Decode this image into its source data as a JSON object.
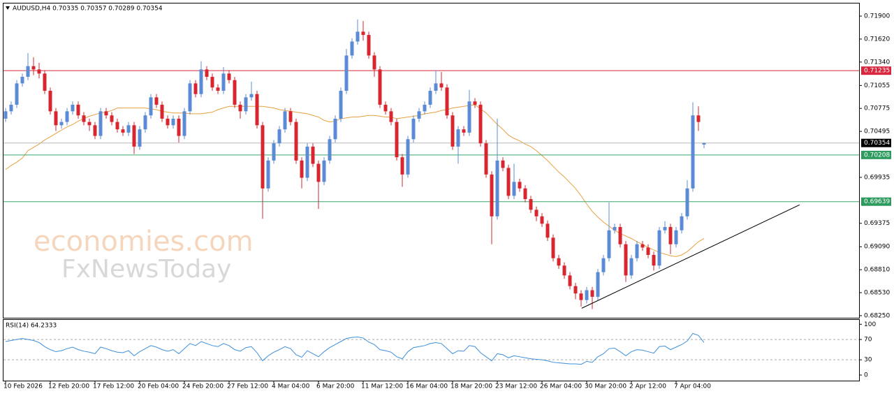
{
  "chart_data": [
    {
      "type": "candlestick",
      "title": "AUDUSD,H4  0.70335 0.70357 0.70289 0.70354",
      "watermark": [
        "economies.com",
        "FxNewsToday"
      ],
      "up_color": "#5b8bd4",
      "down_color": "#d7262f",
      "grid": false,
      "ylim": [
        0.68224,
        0.72062
      ],
      "yticks": [
        {
          "value": 0.719,
          "label": "0.71900"
        },
        {
          "value": 0.7162,
          "label": "0.71620"
        },
        {
          "value": 0.7134,
          "label": "0.71340"
        },
        {
          "value": 0.71055,
          "label": "0.71055"
        },
        {
          "value": 0.70775,
          "label": "0.70775"
        },
        {
          "value": 0.70495,
          "label": "0.70495"
        },
        {
          "value": 0.69935,
          "label": "0.69935"
        },
        {
          "value": 0.69375,
          "label": "0.69375"
        },
        {
          "value": 0.6909,
          "label": "0.69090"
        },
        {
          "value": 0.6881,
          "label": "0.68810"
        },
        {
          "value": 0.6853,
          "label": "0.68530"
        },
        {
          "value": 0.6825,
          "label": "0.68250"
        }
      ],
      "levels": [
        {
          "value": 0.71235,
          "color": "#d7263d",
          "line_color": "#d7263d"
        },
        {
          "value": 0.70354,
          "color": "#000000",
          "line_color": "#b8b8b8"
        },
        {
          "value": 0.70208,
          "color": "#2e9b5e",
          "line_color": "#3aa66a"
        },
        {
          "value": 0.69639,
          "color": "#2e9b5e",
          "line_color": "#3aa66a"
        }
      ],
      "categories": [
        "10 Feb 2026",
        null,
        null,
        null,
        null,
        null,
        null,
        null,
        "12 Feb 20:00",
        null,
        null,
        null,
        null,
        null,
        null,
        null,
        "17 Feb 12:00",
        null,
        null,
        null,
        null,
        null,
        null,
        null,
        "20 Feb 04:00",
        null,
        null,
        null,
        null,
        null,
        null,
        null,
        "24 Feb 20:00",
        null,
        null,
        null,
        null,
        null,
        null,
        null,
        "27 Feb 12:00",
        null,
        null,
        null,
        null,
        null,
        null,
        null,
        "4 Mar 04:00",
        null,
        null,
        null,
        null,
        null,
        null,
        null,
        "6 Mar 20:00",
        null,
        null,
        null,
        null,
        null,
        null,
        null,
        "11 Mar 12:00",
        null,
        null,
        null,
        null,
        null,
        null,
        null,
        "16 Mar 04:00",
        null,
        null,
        null,
        null,
        null,
        null,
        null,
        "18 Mar 20:00",
        null,
        null,
        null,
        null,
        null,
        null,
        null,
        "23 Mar 12:00",
        null,
        null,
        null,
        null,
        null,
        null,
        null,
        "26 Mar 04:00",
        null,
        null,
        null,
        null,
        null,
        null,
        null,
        "30 Mar 20:00",
        null,
        null,
        null,
        null,
        null,
        null,
        null,
        "2 Apr 12:00",
        null,
        null,
        null,
        null,
        null,
        null,
        null,
        "7 Apr 04:00",
        null,
        null,
        null,
        null,
        null
      ],
      "open": [
        0.7065,
        0.7074,
        0.7082,
        0.7108,
        0.7116,
        0.7129,
        0.7125,
        0.712,
        0.7099,
        0.7074,
        0.7057,
        0.7061,
        0.7074,
        0.7082,
        0.7069,
        0.7061,
        0.7057,
        0.7044,
        0.7074,
        0.7069,
        0.7061,
        0.7052,
        0.7048,
        0.7057,
        0.7031,
        0.7052,
        0.7069,
        0.7091,
        0.7082,
        0.7065,
        0.7057,
        0.7065,
        0.7044,
        0.7074,
        0.7108,
        0.7095,
        0.7125,
        0.7116,
        0.7103,
        0.7099,
        0.712,
        0.7112,
        0.7082,
        0.7074,
        0.7091,
        0.7095,
        0.7057,
        0.698,
        0.7014,
        0.7035,
        0.7052,
        0.7074,
        0.7061,
        0.7014,
        0.6993,
        0.7031,
        0.701,
        0.6988,
        0.7014,
        0.704,
        0.7065,
        0.7099,
        0.7142,
        0.7159,
        0.7171,
        0.7167,
        0.7142,
        0.7125,
        0.7082,
        0.7074,
        0.7061,
        0.7018,
        0.6997,
        0.704,
        0.7065,
        0.7074,
        0.7082,
        0.7099,
        0.7108,
        0.7103,
        0.7069,
        0.7031,
        0.7052,
        0.7048,
        0.7086,
        0.7082,
        0.7035,
        0.6997,
        0.6946,
        0.7014,
        0.7005,
        0.6971,
        0.6988,
        0.698,
        0.6967,
        0.6954,
        0.6946,
        0.6937,
        0.692,
        0.6895,
        0.6886,
        0.6874,
        0.6861,
        0.6852,
        0.6844,
        0.6856,
        0.6848,
        0.6878,
        0.6895,
        0.6929,
        0.6933,
        0.6912,
        0.6874,
        0.6895,
        0.6912,
        0.6908,
        0.6899,
        0.6886,
        0.6929,
        0.6933,
        0.6912,
        0.6929,
        0.6946,
        0.698,
        0.7069,
        0.70335
      ],
      "high": [
        0.7078,
        0.7086,
        0.7112,
        0.712,
        0.7145,
        0.714,
        0.7133,
        0.7124,
        0.7103,
        0.7078,
        0.7065,
        0.7078,
        0.7086,
        0.7086,
        0.7073,
        0.7065,
        0.7061,
        0.7078,
        0.7078,
        0.7073,
        0.7065,
        0.7056,
        0.7061,
        0.7061,
        0.7056,
        0.7073,
        0.7095,
        0.7095,
        0.7086,
        0.7069,
        0.7069,
        0.7069,
        0.7078,
        0.7112,
        0.7112,
        0.7135,
        0.7129,
        0.712,
        0.7107,
        0.7128,
        0.7124,
        0.7116,
        0.7086,
        0.7095,
        0.711,
        0.7099,
        0.7061,
        0.7018,
        0.7039,
        0.7056,
        0.7078,
        0.7078,
        0.7065,
        0.7018,
        0.7035,
        0.7035,
        0.7014,
        0.7018,
        0.7044,
        0.7069,
        0.7103,
        0.715,
        0.7163,
        0.7186,
        0.7184,
        0.7171,
        0.7146,
        0.7129,
        0.7086,
        0.7078,
        0.7065,
        0.7022,
        0.7044,
        0.7069,
        0.7078,
        0.7086,
        0.7103,
        0.7124,
        0.7122,
        0.7107,
        0.7073,
        0.7056,
        0.7056,
        0.71,
        0.709,
        0.7086,
        0.7039,
        0.7001,
        0.7065,
        0.7018,
        0.7009,
        0.701,
        0.6992,
        0.6984,
        0.6971,
        0.6958,
        0.695,
        0.6941,
        0.6924,
        0.6899,
        0.689,
        0.6878,
        0.6865,
        0.6856,
        0.686,
        0.686,
        0.6882,
        0.6899,
        0.6963,
        0.6937,
        0.6937,
        0.6916,
        0.6899,
        0.6916,
        0.6916,
        0.6912,
        0.6903,
        0.6933,
        0.694,
        0.6937,
        0.6933,
        0.695,
        0.699,
        0.7085,
        0.708,
        0.70357
      ],
      "low": [
        0.7061,
        0.707,
        0.7078,
        0.7104,
        0.7112,
        0.7118,
        0.7114,
        0.7095,
        0.707,
        0.705,
        0.7053,
        0.7057,
        0.707,
        0.7065,
        0.7057,
        0.705,
        0.704,
        0.704,
        0.7065,
        0.7057,
        0.7048,
        0.7044,
        0.7044,
        0.7022,
        0.7027,
        0.7048,
        0.7065,
        0.7078,
        0.7061,
        0.7053,
        0.7053,
        0.7036,
        0.704,
        0.707,
        0.7091,
        0.7091,
        0.7112,
        0.7099,
        0.7095,
        0.7095,
        0.7108,
        0.7078,
        0.7065,
        0.707,
        0.7087,
        0.7053,
        0.6943,
        0.6976,
        0.701,
        0.7031,
        0.7048,
        0.7057,
        0.701,
        0.698,
        0.6989,
        0.7006,
        0.6955,
        0.6984,
        0.701,
        0.7036,
        0.7061,
        0.7095,
        0.7138,
        0.7155,
        0.716,
        0.7138,
        0.7116,
        0.7078,
        0.707,
        0.7057,
        0.7014,
        0.6982,
        0.6993,
        0.7036,
        0.7061,
        0.707,
        0.7078,
        0.7095,
        0.7099,
        0.7065,
        0.7027,
        0.701,
        0.7044,
        0.7044,
        0.7078,
        0.7031,
        0.6993,
        0.6912,
        0.6942,
        0.7001,
        0.6967,
        0.6967,
        0.6976,
        0.6963,
        0.695,
        0.694,
        0.6933,
        0.6916,
        0.6891,
        0.6882,
        0.687,
        0.6857,
        0.6845,
        0.6836,
        0.684,
        0.6833,
        0.6844,
        0.6874,
        0.6891,
        0.6925,
        0.6908,
        0.6866,
        0.687,
        0.6891,
        0.6904,
        0.6895,
        0.688,
        0.6882,
        0.6925,
        0.69,
        0.6908,
        0.6925,
        0.6942,
        0.6976,
        0.705,
        0.70289
      ],
      "close": [
        0.7074,
        0.7082,
        0.7108,
        0.7116,
        0.7129,
        0.7125,
        0.712,
        0.7099,
        0.7074,
        0.7057,
        0.7061,
        0.7074,
        0.7082,
        0.7069,
        0.7061,
        0.7057,
        0.7044,
        0.7074,
        0.7069,
        0.7061,
        0.7052,
        0.7048,
        0.7057,
        0.7031,
        0.7052,
        0.7069,
        0.7091,
        0.7082,
        0.7065,
        0.7057,
        0.7065,
        0.7044,
        0.7074,
        0.7108,
        0.7095,
        0.7125,
        0.7116,
        0.7103,
        0.7099,
        0.712,
        0.7112,
        0.7082,
        0.7074,
        0.7091,
        0.7095,
        0.7057,
        0.698,
        0.7014,
        0.7035,
        0.7052,
        0.7074,
        0.7061,
        0.7014,
        0.6993,
        0.7031,
        0.701,
        0.6988,
        0.7014,
        0.704,
        0.7065,
        0.7099,
        0.7142,
        0.7159,
        0.7171,
        0.7167,
        0.7142,
        0.7125,
        0.7082,
        0.7074,
        0.7061,
        0.7018,
        0.6997,
        0.704,
        0.7065,
        0.7074,
        0.7082,
        0.7099,
        0.7108,
        0.7103,
        0.7069,
        0.7031,
        0.7052,
        0.7048,
        0.7086,
        0.7082,
        0.7035,
        0.6997,
        0.6946,
        0.7014,
        0.7005,
        0.6971,
        0.6988,
        0.698,
        0.6967,
        0.6954,
        0.6946,
        0.6937,
        0.692,
        0.6895,
        0.6886,
        0.6874,
        0.6861,
        0.6852,
        0.6844,
        0.6856,
        0.6848,
        0.6878,
        0.6895,
        0.6929,
        0.6933,
        0.6912,
        0.6874,
        0.6895,
        0.6912,
        0.6908,
        0.6899,
        0.6886,
        0.6929,
        0.6933,
        0.6912,
        0.6929,
        0.6946,
        0.698,
        0.7069,
        0.7061,
        0.70354
      ],
      "moving_average": {
        "color": "#e8a040",
        "values": [
          0.7003,
          0.7008,
          0.7012,
          0.7017,
          0.7026,
          0.703,
          0.7034,
          0.7039,
          0.7043,
          0.7047,
          0.7051,
          0.7055,
          0.7058,
          0.7062,
          0.7065,
          0.7068,
          0.707,
          0.7072,
          0.7073,
          0.7075,
          0.7078,
          0.7078,
          0.7078,
          0.7078,
          0.7078,
          0.7078,
          0.7077,
          0.7076,
          0.7074,
          0.7073,
          0.7072,
          0.7072,
          0.7072,
          0.7071,
          0.7071,
          0.7071,
          0.7072,
          0.7073,
          0.7076,
          0.7078,
          0.708,
          0.708,
          0.708,
          0.708,
          0.708,
          0.708,
          0.708,
          0.7079,
          0.7078,
          0.7076,
          0.7075,
          0.7074,
          0.7073,
          0.7072,
          0.7071,
          0.7069,
          0.7067,
          0.7063,
          0.7061,
          0.7062,
          0.7065,
          0.7066,
          0.7067,
          0.7067,
          0.7068,
          0.7069,
          0.7069,
          0.7068,
          0.7067,
          0.7067,
          0.7065,
          0.7066,
          0.7067,
          0.7068,
          0.7069,
          0.7071,
          0.7072,
          0.7073,
          0.7075,
          0.7076,
          0.7078,
          0.7079,
          0.708,
          0.7081,
          0.7082,
          0.7077,
          0.7072,
          0.7065,
          0.7058,
          0.7052,
          0.7045,
          0.7041,
          0.7038,
          0.7034,
          0.7031,
          0.7026,
          0.702,
          0.7014,
          0.7007,
          0.7,
          0.6994,
          0.6987,
          0.698,
          0.6971,
          0.6961,
          0.6952,
          0.6945,
          0.6939,
          0.6934,
          0.6929,
          0.6925,
          0.6922,
          0.6919,
          0.6915,
          0.6912,
          0.6908,
          0.6905,
          0.6902,
          0.69,
          0.6898,
          0.6897,
          0.6899,
          0.6903,
          0.6909,
          0.6915,
          0.6919
        ]
      },
      "trendline": {
        "color": "#000000",
        "x": [
          103.1,
          142.1
        ],
        "y": [
          0.6834,
          0.696
        ]
      }
    },
    {
      "type": "line",
      "title": "RSI(14) 64.2333",
      "color": "#3d8fdc",
      "ylim": [
        -11,
        110
      ],
      "yticks": [
        100,
        70,
        30,
        0
      ],
      "levels": [
        70,
        30
      ],
      "values": [
        66,
        68,
        70,
        72,
        70,
        68,
        64,
        56,
        50,
        46,
        48,
        52,
        55,
        50,
        47,
        45,
        42,
        55,
        52,
        48,
        45,
        44,
        48,
        38,
        46,
        52,
        58,
        55,
        50,
        47,
        50,
        42,
        52,
        62,
        58,
        66,
        62,
        58,
        56,
        62,
        58,
        50,
        47,
        54,
        56,
        44,
        28,
        38,
        45,
        50,
        56,
        52,
        40,
        35,
        48,
        42,
        36,
        46,
        54,
        60,
        66,
        72,
        74,
        75,
        73,
        65,
        60,
        50,
        48,
        45,
        36,
        32,
        46,
        54,
        56,
        58,
        62,
        64,
        62,
        52,
        42,
        48,
        47,
        58,
        56,
        44,
        36,
        28,
        42,
        40,
        34,
        38,
        36,
        34,
        32,
        31,
        30,
        28,
        25,
        24,
        23,
        22,
        22,
        21,
        27,
        25,
        36,
        42,
        52,
        53,
        46,
        38,
        46,
        50,
        49,
        46,
        43,
        56,
        57,
        50,
        55,
        60,
        67,
        82,
        78,
        64.2333
      ]
    }
  ]
}
